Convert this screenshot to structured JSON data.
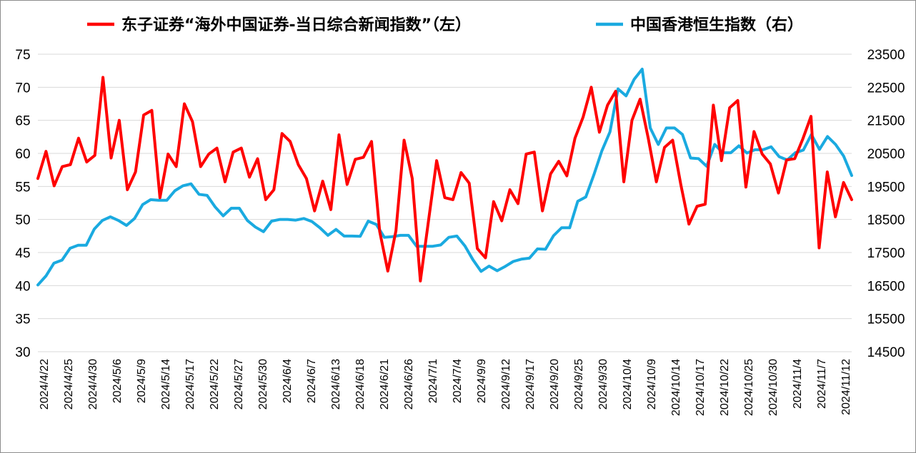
{
  "chart_data": {
    "type": "line",
    "legend_position": "top",
    "grid": true,
    "y_left": {
      "ylim": [
        30,
        75
      ],
      "ticks": [
        "30",
        "35",
        "40",
        "45",
        "50",
        "55",
        "60",
        "65",
        "70",
        "75"
      ]
    },
    "y_right": {
      "ylim": [
        14500,
        23500
      ],
      "ticks": [
        "14500",
        "15500",
        "16500",
        "17500",
        "18500",
        "19500",
        "20500",
        "21500",
        "22500",
        "23500"
      ]
    },
    "x_tick_labels": [
      "2024/4/22",
      "2024/4/25",
      "2024/4/30",
      "2024/5/6",
      "2024/5/9",
      "2024/5/14",
      "2024/5/17",
      "2024/5/22",
      "2024/5/27",
      "2024/5/30",
      "2024/6/4",
      "2024/6/7",
      "2024/6/13",
      "2024/6/18",
      "2024/6/21",
      "2024/6/26",
      "2024/7/1",
      "2024/7/4",
      "2024/9/9",
      "2024/9/12",
      "2024/9/17",
      "2024/9/20",
      "2024/9/25",
      "2024/9/30",
      "2024/10/4",
      "2024/10/9",
      "2024/10/14",
      "2024/10/17",
      "2024/10/22",
      "2024/10/25",
      "2024/10/30",
      "2024/11/4",
      "2024/11/7",
      "2024/11/12"
    ],
    "series": [
      {
        "name": "东子证券“海外中国证券-当日综合新闻指数”（左）",
        "axis": "left",
        "color": "#FF0000",
        "values": [
          56.2,
          60.3,
          55.1,
          58,
          58.3,
          62.3,
          58.7,
          59.7,
          71.5,
          59.3,
          65,
          54.5,
          57.2,
          65.8,
          66.5,
          53.3,
          59.9,
          58,
          67.5,
          64.8,
          58,
          59.9,
          60.8,
          55.7,
          60.2,
          60.8,
          56.4,
          59.2,
          53,
          54.5,
          63,
          61.8,
          58.3,
          56.2,
          51.3,
          55.8,
          51.5,
          62.8,
          55.3,
          59.1,
          59.4,
          61.8,
          48.2,
          42.2,
          48.3,
          62,
          56.2,
          40.7,
          49.8,
          58.9,
          53.3,
          53,
          57.1,
          55.5,
          45.6,
          44.2,
          52.7,
          49.8,
          54.5,
          52.4,
          59.9,
          60.2,
          51.3,
          56.9,
          58.8,
          56.6,
          62.3,
          65.5,
          70,
          63.2,
          67.3,
          69.4,
          55.7,
          65,
          68.2,
          62.3,
          55.7,
          60.9,
          62,
          55.3,
          49.3,
          52,
          52.3,
          67.3,
          58.9,
          66.9,
          68,
          54.9,
          63.3,
          59.9,
          58.4,
          54,
          59,
          59.2,
          62.2,
          65.6,
          45.7,
          57.2,
          50.4,
          55.6,
          53
        ]
      },
      {
        "name": "中国香港恒生指数（右）",
        "axis": "right",
        "color": "#1AAAE0",
        "values": [
          16520,
          16790,
          17180,
          17270,
          17630,
          17720,
          17720,
          18210,
          18470,
          18580,
          18470,
          18320,
          18530,
          18950,
          19100,
          19080,
          19080,
          19370,
          19520,
          19580,
          19260,
          19230,
          18880,
          18610,
          18840,
          18840,
          18470,
          18270,
          18130,
          18450,
          18500,
          18500,
          18480,
          18530,
          18440,
          18250,
          18020,
          18200,
          18000,
          18000,
          17990,
          18450,
          18350,
          17960,
          17980,
          18020,
          18020,
          17690,
          17690,
          17690,
          17730,
          17960,
          18000,
          17700,
          17280,
          16930,
          17090,
          16950,
          17080,
          17230,
          17300,
          17330,
          17610,
          17600,
          18010,
          18250,
          18250,
          19050,
          19180,
          19850,
          20580,
          21150,
          22450,
          22240,
          22740,
          23050,
          21270,
          20770,
          21270,
          21270,
          21070,
          20360,
          20340,
          20110,
          20770,
          20520,
          20520,
          20730,
          20510,
          20610,
          20610,
          20700,
          20400,
          20300,
          20520,
          20600,
          21070,
          20620,
          21010,
          20770,
          20420,
          19830
        ]
      }
    ]
  }
}
